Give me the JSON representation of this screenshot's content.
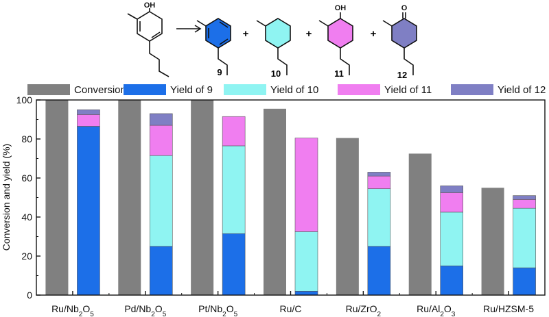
{
  "scheme": {
    "reactant_oh": "OH",
    "products": [
      {
        "label": "9",
        "color": "#1c6fe8"
      },
      {
        "label": "10",
        "color": "#8ff4f2"
      },
      {
        "label": "11",
        "color": "#f07ef0",
        "group": "OH"
      },
      {
        "label": "12",
        "color": "#7f7fc4",
        "group": "O"
      }
    ],
    "plus": "+"
  },
  "chart_data": {
    "type": "bar",
    "xlabel": "",
    "ylabel": "Conversion and yield (%)",
    "ylim": [
      0,
      100
    ],
    "yticks": [
      0,
      20,
      40,
      60,
      80,
      100
    ],
    "categories": [
      "Ru/Nb2O5",
      "Pd/Nb2O5",
      "Pt/Nb2O5",
      "Ru/C",
      "Ru/ZrO2",
      "Ru/Al2O3",
      "Ru/HZSM-5"
    ],
    "category_labels": [
      [
        {
          "t": "Ru/Nb"
        },
        {
          "t": "2",
          "sub": true
        },
        {
          "t": "O"
        },
        {
          "t": "5",
          "sub": true
        }
      ],
      [
        {
          "t": "Pd/Nb"
        },
        {
          "t": "2",
          "sub": true
        },
        {
          "t": "O"
        },
        {
          "t": "5",
          "sub": true
        }
      ],
      [
        {
          "t": "Pt/Nb"
        },
        {
          "t": "2",
          "sub": true
        },
        {
          "t": "O"
        },
        {
          "t": "5",
          "sub": true
        }
      ],
      [
        {
          "t": "Ru/C"
        }
      ],
      [
        {
          "t": "Ru/ZrO"
        },
        {
          "t": "2",
          "sub": true
        }
      ],
      [
        {
          "t": "Ru/Al"
        },
        {
          "t": "2",
          "sub": true
        },
        {
          "t": "O"
        },
        {
          "t": "3",
          "sub": true
        }
      ],
      [
        {
          "t": "Ru/HZSM-5"
        }
      ]
    ],
    "series": [
      {
        "name": "Conversion",
        "color": "#808080",
        "stack": "conversion",
        "values": [
          100,
          100,
          100,
          95.5,
          80.5,
          72.5,
          55
        ]
      },
      {
        "name": "Yield of 9",
        "color": "#1c6fe8",
        "stack": "yield",
        "values": [
          86.5,
          25,
          31.5,
          2,
          25,
          15,
          14
        ]
      },
      {
        "name": "Yield of 10",
        "color": "#8ff4f2",
        "stack": "yield",
        "values": [
          0,
          46.5,
          45,
          30.5,
          29.5,
          27.5,
          30.5
        ]
      },
      {
        "name": "Yield of 11",
        "color": "#f07ef0",
        "stack": "yield",
        "values": [
          6,
          15.5,
          15,
          48,
          6.5,
          10,
          4.5
        ]
      },
      {
        "name": "Yield of 12",
        "color": "#7f7fc4",
        "stack": "yield",
        "values": [
          2.5,
          6,
          0,
          0,
          2,
          3.5,
          2
        ]
      }
    ],
    "legend_position": "top",
    "grid": false
  }
}
